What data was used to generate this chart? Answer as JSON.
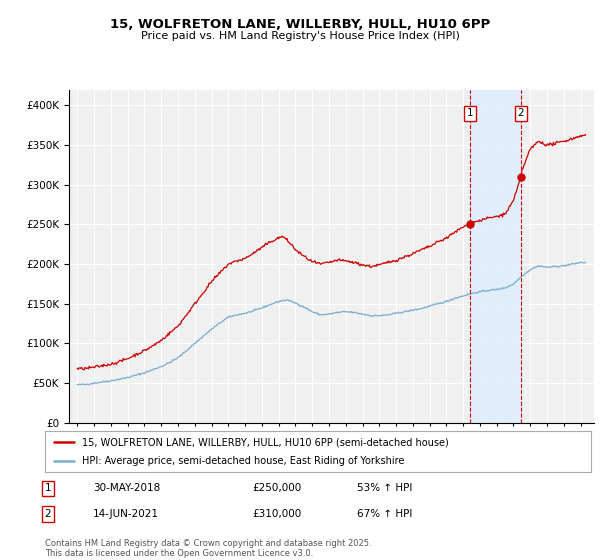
{
  "title": "15, WOLFRETON LANE, WILLERBY, HULL, HU10 6PP",
  "subtitle": "Price paid vs. HM Land Registry's House Price Index (HPI)",
  "legend_line1": "15, WOLFRETON LANE, WILLERBY, HULL, HU10 6PP (semi-detached house)",
  "legend_line2": "HPI: Average price, semi-detached house, East Riding of Yorkshire",
  "footnote": "Contains HM Land Registry data © Crown copyright and database right 2025.\nThis data is licensed under the Open Government Licence v3.0.",
  "sale1_label": "1",
  "sale1_date": "30-MAY-2018",
  "sale1_price": "£250,000",
  "sale1_hpi": "53% ↑ HPI",
  "sale2_label": "2",
  "sale2_date": "14-JUN-2021",
  "sale2_price": "£310,000",
  "sale2_hpi": "67% ↑ HPI",
  "sale1_year": 2018.42,
  "sale2_year": 2021.45,
  "sale1_price_val": 250000,
  "sale2_price_val": 310000,
  "red_color": "#cc0000",
  "blue_color": "#7aadcf",
  "shade_color": "#ddeeff",
  "background_color": "#f0f0f0",
  "ylim": [
    0,
    420000
  ],
  "xlim_start": 1994.5,
  "xlim_end": 2025.8
}
